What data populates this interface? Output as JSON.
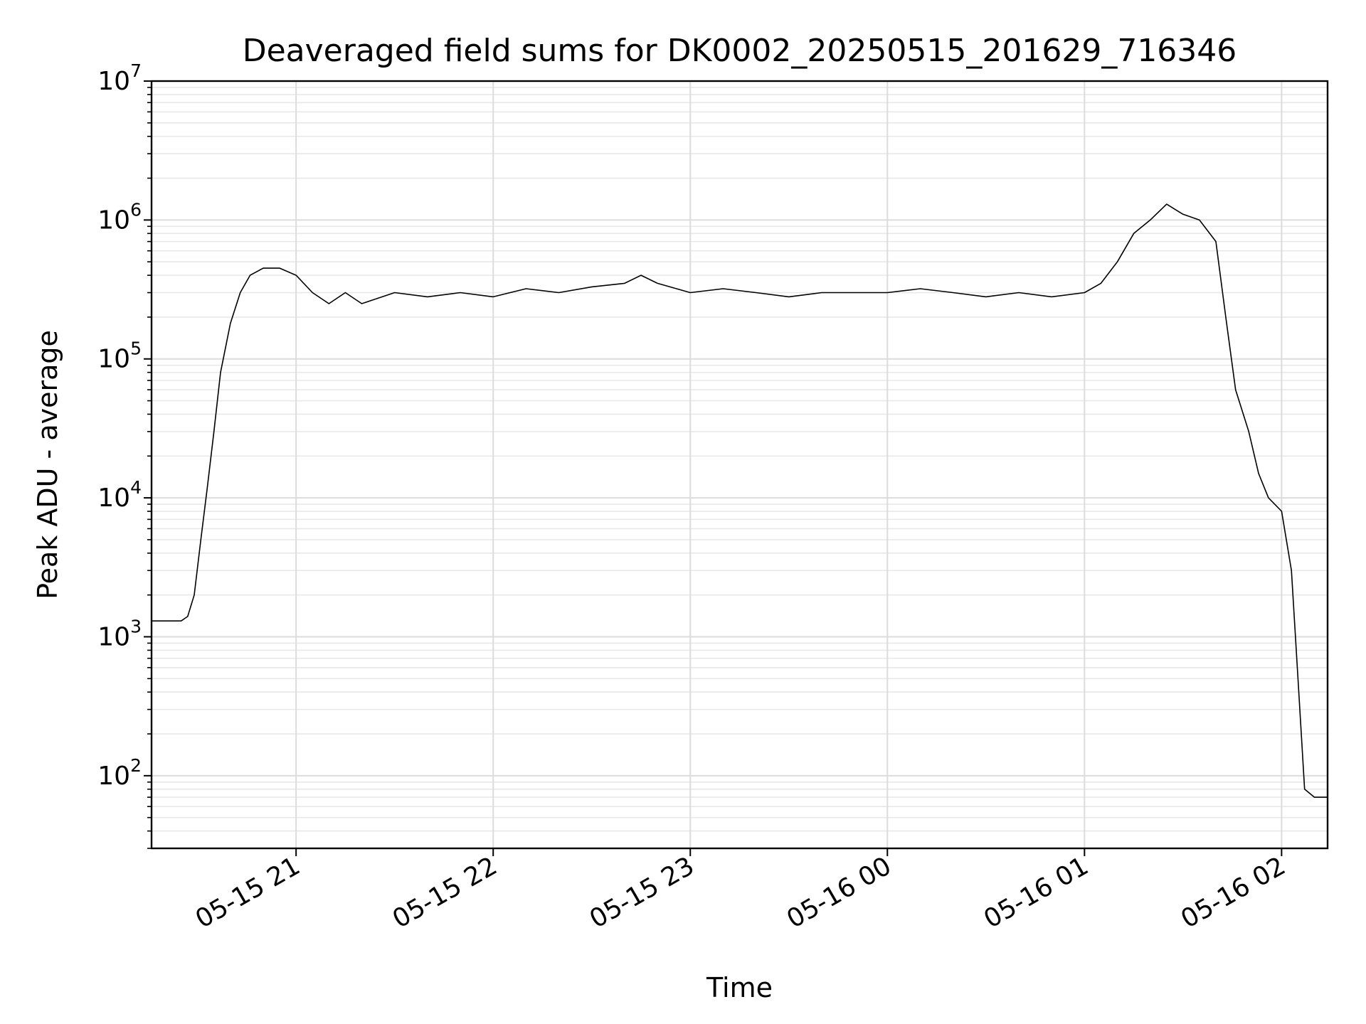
{
  "chart_data": {
    "type": "line",
    "title": "Deaveraged field sums for DK0002_20250515_201629_716346",
    "xlabel": "Time",
    "ylabel": "Peak ADU - average",
    "yscale": "log",
    "xlim": [
      "05-15 20:16",
      "05-16 02:14"
    ],
    "ylim": [
      30,
      10000000
    ],
    "x_ticks": [
      "05-15 21",
      "05-15 22",
      "05-15 23",
      "05-16 00",
      "05-16 01",
      "05-16 02"
    ],
    "y_ticks": [
      {
        "base": "10",
        "exp": "2",
        "value": 100
      },
      {
        "base": "10",
        "exp": "3",
        "value": 1000
      },
      {
        "base": "10",
        "exp": "4",
        "value": 10000
      },
      {
        "base": "10",
        "exp": "5",
        "value": 100000
      },
      {
        "base": "10",
        "exp": "6",
        "value": 1000000
      },
      {
        "base": "10",
        "exp": "7",
        "value": 10000000
      }
    ],
    "grid": true,
    "line_color": "#000000",
    "series": [
      {
        "x": [
          "05-15 20:16",
          "05-15 20:20",
          "05-15 20:25",
          "05-15 20:27",
          "05-15 20:29",
          "05-15 20:31",
          "05-15 20:33",
          "05-15 20:35",
          "05-15 20:37",
          "05-15 20:40",
          "05-15 20:43",
          "05-15 20:46",
          "05-15 20:50",
          "05-15 20:55",
          "05-15 21:00",
          "05-15 21:05",
          "05-15 21:10",
          "05-15 21:15",
          "05-15 21:20",
          "05-15 21:30",
          "05-15 21:40",
          "05-15 21:50",
          "05-15 22:00",
          "05-15 22:10",
          "05-15 22:20",
          "05-15 22:30",
          "05-15 22:40",
          "05-15 22:45",
          "05-15 22:50",
          "05-15 23:00",
          "05-15 23:10",
          "05-15 23:20",
          "05-15 23:30",
          "05-15 23:40",
          "05-15 23:50",
          "05-16 00:00",
          "05-16 00:10",
          "05-16 00:20",
          "05-16 00:30",
          "05-16 00:40",
          "05-16 00:50",
          "05-16 01:00",
          "05-16 01:05",
          "05-16 01:10",
          "05-16 01:15",
          "05-16 01:20",
          "05-16 01:25",
          "05-16 01:30",
          "05-16 01:35",
          "05-16 01:40",
          "05-16 01:43",
          "05-16 01:46",
          "05-16 01:50",
          "05-16 01:53",
          "05-16 01:56",
          "05-16 02:00",
          "05-16 02:03",
          "05-16 02:05",
          "05-16 02:07",
          "05-16 02:10",
          "05-16 02:14"
        ],
        "y": [
          1300,
          1300,
          1300,
          1400,
          2000,
          5000,
          12000,
          30000,
          80000,
          180000,
          300000,
          400000,
          450000,
          450000,
          400000,
          300000,
          250000,
          300000,
          250000,
          300000,
          280000,
          300000,
          280000,
          320000,
          300000,
          330000,
          350000,
          400000,
          350000,
          300000,
          320000,
          300000,
          280000,
          300000,
          300000,
          300000,
          320000,
          300000,
          280000,
          300000,
          280000,
          300000,
          350000,
          500000,
          800000,
          1000000,
          1300000,
          1100000,
          1000000,
          700000,
          200000,
          60000,
          30000,
          15000,
          10000,
          8000,
          3000,
          500,
          80,
          70,
          70
        ]
      }
    ]
  }
}
